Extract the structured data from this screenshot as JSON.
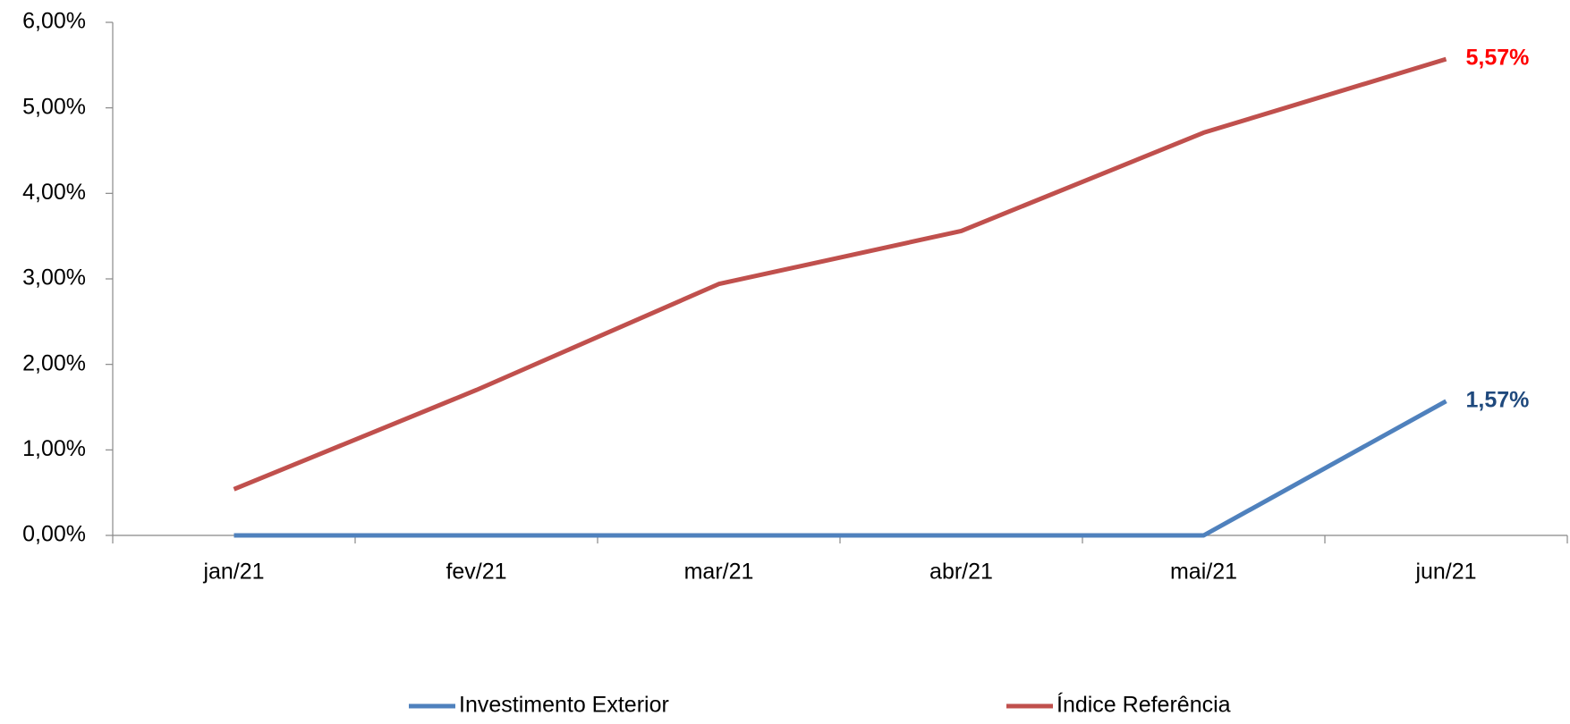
{
  "chart_data": {
    "type": "line",
    "categories": [
      "jan/21",
      "fev/21",
      "mar/21",
      "abr/21",
      "mai/21",
      "jun/21"
    ],
    "series": [
      {
        "name": "Investimento Exterior",
        "color": "#4f81bd",
        "label_color": "#1f497d",
        "values": [
          0,
          0,
          0,
          0,
          0,
          1.57
        ],
        "value_labels": [
          null,
          null,
          null,
          null,
          null,
          "1,57%"
        ]
      },
      {
        "name": "Índice Referência",
        "color": "#c0504d",
        "label_color": "#ff0000",
        "values": [
          0.54,
          1.7,
          2.94,
          3.56,
          4.71,
          5.57
        ],
        "value_labels": [
          null,
          null,
          null,
          null,
          null,
          "5,57%"
        ]
      }
    ],
    "ylim": [
      0,
      6
    ],
    "yticks": [
      {
        "value": 0,
        "label": "0,00%"
      },
      {
        "value": 1,
        "label": "1,00%"
      },
      {
        "value": 2,
        "label": "2,00%"
      },
      {
        "value": 3,
        "label": "3,00%"
      },
      {
        "value": 4,
        "label": "4,00%"
      },
      {
        "value": 5,
        "label": "5,00%"
      },
      {
        "value": 6,
        "label": "6,00%"
      }
    ],
    "grid": false,
    "legend": "bottom"
  }
}
